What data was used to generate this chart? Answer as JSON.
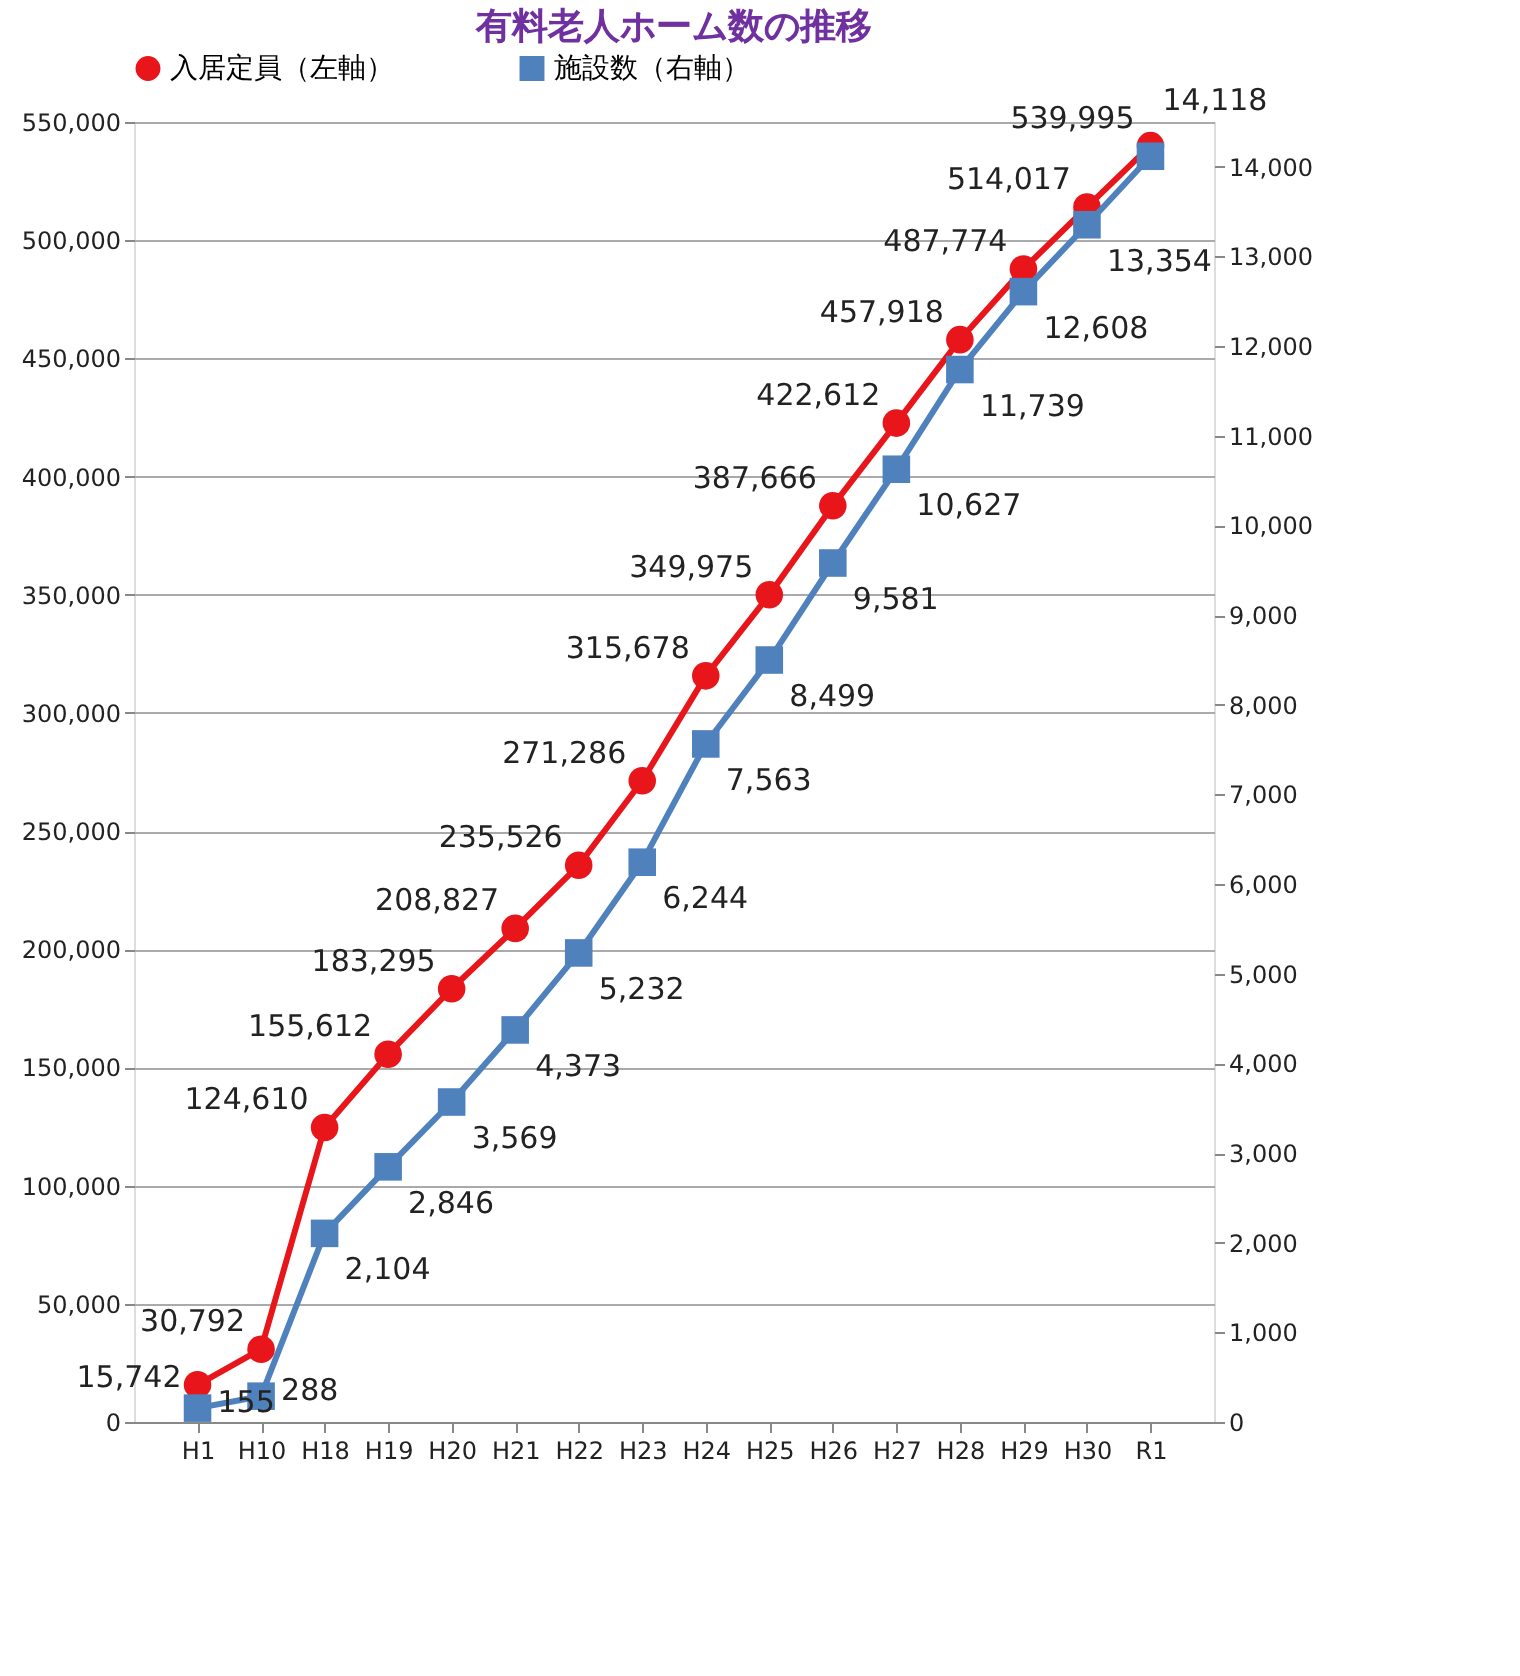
{
  "chart_data": {
    "type": "line",
    "title": "有料老人ホーム数の推移",
    "categories": [
      "H1",
      "H10",
      "H18",
      "H19",
      "H20",
      "H21",
      "H22",
      "H23",
      "H24",
      "H25",
      "H26",
      "H27",
      "H28",
      "H29",
      "H30",
      "R1"
    ],
    "series": [
      {
        "name": "入居定員（左軸）",
        "color": "#e8161b",
        "marker": "circle",
        "values": [
          15742,
          30792,
          124610,
          155612,
          183295,
          208827,
          235526,
          271286,
          315678,
          349975,
          387666,
          422612,
          457918,
          487774,
          514017,
          539995
        ],
        "value_labels": [
          "15,742",
          "30,792",
          "124,610",
          "155,612",
          "183,295",
          "208,827",
          "235,526",
          "271,286",
          "315,678",
          "349,975",
          "387,666",
          "422,612",
          "457,918",
          "487,774",
          "514,017",
          "539,995"
        ]
      },
      {
        "name": "施設数（右軸）",
        "color": "#4f81bd",
        "marker": "square",
        "axis": "y2",
        "values": [
          155,
          288,
          2104,
          2846,
          3569,
          4373,
          5232,
          6244,
          7563,
          8499,
          9581,
          10627,
          11739,
          12608,
          13354,
          14118
        ],
        "value_labels": [
          "155",
          "288",
          "2,104",
          "2,846",
          "3,569",
          "4,373",
          "5,232",
          "6,244",
          "7,563",
          "8,499",
          "9,581",
          "10,627",
          "11,739",
          "12,608",
          "13,354",
          "14,118"
        ]
      }
    ],
    "ylim": [
      0,
      550000
    ],
    "yticks": [
      {
        "value": 0,
        "label": "0"
      },
      {
        "value": 50000,
        "label": "50,000"
      },
      {
        "value": 100000,
        "label": "100,000"
      },
      {
        "value": 150000,
        "label": "150,000"
      },
      {
        "value": 200000,
        "label": "200,000"
      },
      {
        "value": 250000,
        "label": "250,000"
      },
      {
        "value": 300000,
        "label": "300,000"
      },
      {
        "value": 350000,
        "label": "350,000"
      },
      {
        "value": 400000,
        "label": "400,000"
      },
      {
        "value": 450000,
        "label": "450,000"
      },
      {
        "value": 500000,
        "label": "500,000"
      },
      {
        "value": 550000,
        "label": "550,000"
      }
    ],
    "y2lim": [
      0,
      14500
    ],
    "y2ticks": [
      {
        "value": 0,
        "label": "0"
      },
      {
        "value": 1000,
        "label": "1,000"
      },
      {
        "value": 2000,
        "label": "2,000"
      },
      {
        "value": 3000,
        "label": "3,000"
      },
      {
        "value": 4000,
        "label": "4,000"
      },
      {
        "value": 5000,
        "label": "5,000"
      },
      {
        "value": 6000,
        "label": "6,000"
      },
      {
        "value": 7000,
        "label": "7,000"
      },
      {
        "value": 8000,
        "label": "8,000"
      },
      {
        "value": 9000,
        "label": "9,000"
      },
      {
        "value": 10000,
        "label": "10,000"
      },
      {
        "value": 11000,
        "label": "11,000"
      },
      {
        "value": 12000,
        "label": "12,000"
      },
      {
        "value": 13000,
        "label": "13,000"
      },
      {
        "value": 14000,
        "label": "14,000"
      }
    ],
    "grid": "y",
    "legend": "top",
    "line_style": "solid"
  }
}
